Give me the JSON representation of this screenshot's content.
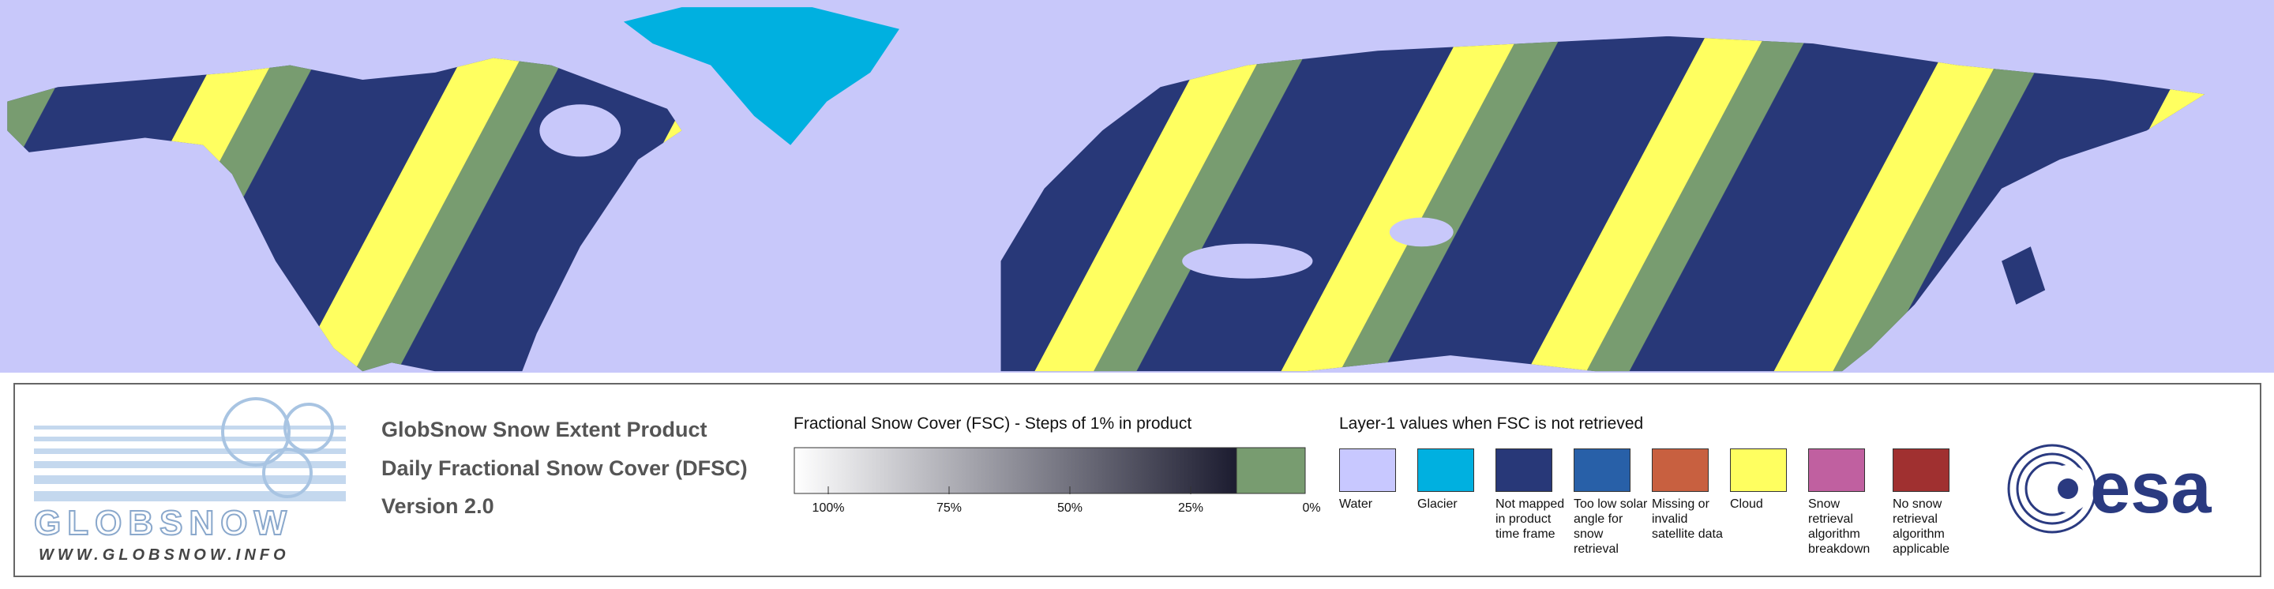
{
  "logo": {
    "name": "GLOBSNOW",
    "url": "WWW.GLOBSNOW.INFO"
  },
  "product": {
    "lines": [
      "GlobSnow Snow Extent Product",
      "Daily Fractional Snow Cover (DFSC)",
      "Version 2.0"
    ]
  },
  "colorbar": {
    "title": "Fractional Snow Cover (FSC) - Steps of 1% in product",
    "ticks": [
      {
        "value": 100,
        "label": "100%"
      },
      {
        "value": 75,
        "label": "75%"
      },
      {
        "value": 50,
        "label": "50%"
      },
      {
        "value": 25,
        "label": "25%"
      },
      {
        "value": 0,
        "label": "0%"
      }
    ],
    "colors": [
      "#ffffff",
      "#1c1c30"
    ],
    "snow_free_color": "#789c70"
  },
  "layer1": {
    "title": "Layer-1 values when FSC is not retrieved",
    "items": [
      {
        "label": "Water",
        "color": "#c8c8ff"
      },
      {
        "label": "Glacier",
        "color": "#00b0e0"
      },
      {
        "label": "Not mapped in product time frame",
        "color": "#283878"
      },
      {
        "label": "Too low solar angle for snow retrieval",
        "color": "#2860a8"
      },
      {
        "label": "Missing or invalid satellite data",
        "color": "#c86040"
      },
      {
        "label": "Cloud",
        "color": "#ffff60"
      },
      {
        "label": "Snow retrieval algorithm breakdown",
        "color": "#c060a0"
      },
      {
        "label": "No snow retrieval algorithm applicable",
        "color": "#a03030"
      }
    ]
  },
  "agency": {
    "name": "esa"
  }
}
